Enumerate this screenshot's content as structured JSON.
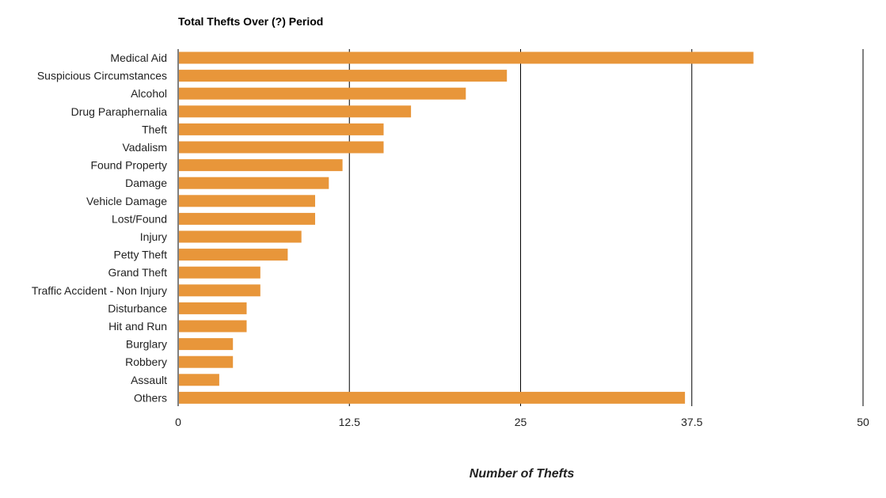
{
  "chart_data": {
    "type": "bar",
    "orientation": "horizontal",
    "title": "Total Thefts Over (?) Period",
    "xlabel": "Number of Thefts",
    "ylabel": "",
    "xlim": [
      0,
      50
    ],
    "ticks": [
      "0",
      "12.5",
      "25",
      "37.5",
      "50"
    ],
    "tick_values": [
      0,
      12.5,
      25,
      37.5,
      50
    ],
    "grid": true,
    "legend": "none",
    "bar_color": "#e8963a",
    "categories": [
      "Medical Aid",
      "Suspicious Circumstances",
      "Alcohol",
      "Drug Paraphernalia",
      "Theft",
      "Vadalism",
      "Found Property",
      "Damage",
      "Vehicle Damage",
      "Lost/Found",
      "Injury",
      "Petty Theft",
      "Grand Theft",
      "Traffic Accident - Non Injury",
      "Disturbance",
      "Hit and Run",
      "Burglary",
      "Robbery",
      "Assault",
      "Others"
    ],
    "values": [
      42,
      24,
      21,
      17,
      15,
      15,
      12,
      11,
      10,
      10,
      9,
      8,
      6,
      6,
      5,
      5,
      4,
      4,
      3,
      37
    ]
  }
}
